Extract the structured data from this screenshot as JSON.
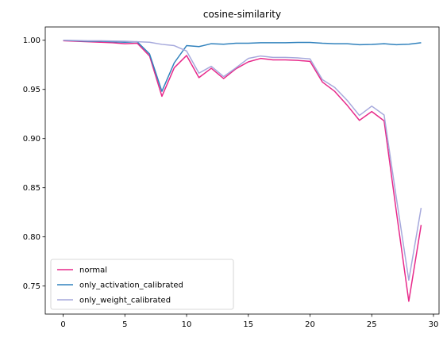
{
  "chart_data": {
    "type": "line",
    "title": "cosine-similarity",
    "xlabel": "",
    "ylabel": "",
    "xlim": [
      -1.45,
      30.45
    ],
    "ylim": [
      0.7215,
      1.0135
    ],
    "x_ticks": [
      0,
      5,
      10,
      15,
      20,
      25,
      30
    ],
    "y_ticks": [
      0.75,
      0.8,
      0.85,
      0.9,
      0.95,
      1.0
    ],
    "y_tick_labels": [
      "0.75",
      "0.80",
      "0.85",
      "0.90",
      "0.95",
      "1.00"
    ],
    "grid": false,
    "legend_position": "lower-left",
    "x": [
      0,
      1,
      2,
      3,
      4,
      5,
      6,
      7,
      8,
      9,
      10,
      11,
      12,
      13,
      14,
      15,
      16,
      17,
      18,
      19,
      20,
      21,
      22,
      23,
      24,
      25,
      26,
      27,
      28,
      29
    ],
    "series": [
      {
        "name": "normal",
        "color": "#e7298a",
        "values": [
          0.9995,
          0.999,
          0.9985,
          0.998,
          0.9975,
          0.9965,
          0.997,
          0.984,
          0.943,
          0.972,
          0.9845,
          0.962,
          0.9715,
          0.961,
          0.971,
          0.978,
          0.9815,
          0.98,
          0.98,
          0.9795,
          0.9785,
          0.9575,
          0.948,
          0.934,
          0.9185,
          0.9275,
          0.918,
          0.825,
          0.7345,
          0.812
        ]
      },
      {
        "name": "only_activation_calibrated",
        "color": "#3182bd",
        "values": [
          1.0,
          0.9995,
          0.999,
          0.999,
          0.9985,
          0.998,
          0.9985,
          0.986,
          0.948,
          0.977,
          0.9945,
          0.9935,
          0.9965,
          0.996,
          0.997,
          0.997,
          0.9975,
          0.9975,
          0.9975,
          0.9978,
          0.9978,
          0.997,
          0.9965,
          0.9965,
          0.9955,
          0.9958,
          0.9965,
          0.9955,
          0.996,
          0.9975
        ]
      },
      {
        "name": "only_weight_calibrated",
        "color": "#a6a9dc",
        "values": [
          1.0,
          0.9998,
          0.9995,
          0.9995,
          0.9992,
          0.999,
          0.9985,
          0.998,
          0.9958,
          0.9945,
          0.989,
          0.9665,
          0.9735,
          0.963,
          0.972,
          0.9815,
          0.984,
          0.9825,
          0.9825,
          0.982,
          0.981,
          0.96,
          0.952,
          0.939,
          0.9235,
          0.933,
          0.924,
          0.839,
          0.756,
          0.8295
        ]
      }
    ]
  }
}
